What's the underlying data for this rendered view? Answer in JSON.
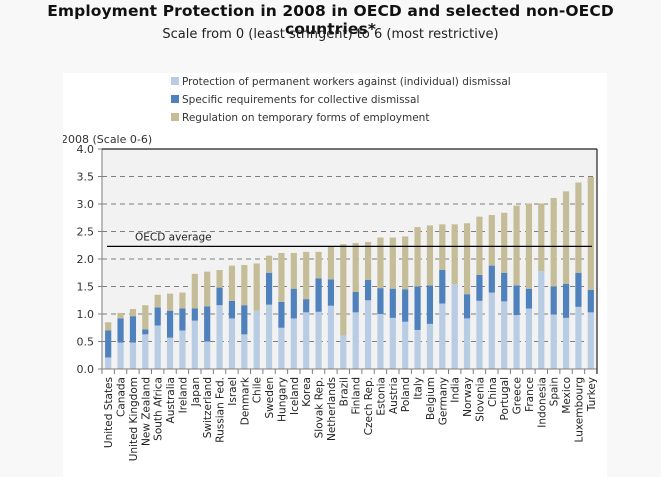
{
  "header": {
    "title": "Employment Protection in 2008 in OECD and selected non-OECD countries*",
    "subtitle": "Scale from 0 (least stringent) to 6 (most restrictive)"
  },
  "chart_data": {
    "type": "bar",
    "stacked": true,
    "title": "Employment Protection in 2008 in OECD and selected non-OECD countries*",
    "subtitle": "Scale from 0 (least stringent) to 6 (most restrictive)",
    "ylabel": "2008 (Scale 0-6)",
    "xlabel": "",
    "ylim": [
      0,
      4.0
    ],
    "yticks": [
      "0.0",
      "0.5",
      "1.0",
      "1.5",
      "2.0",
      "2.5",
      "3.0",
      "3.5",
      "4.0"
    ],
    "grid": "horizontal-dashed",
    "legend_position": "top",
    "colors": {
      "permanent": "#b8cce4",
      "collective": "#4f81bd",
      "temporary": "#c4bd97",
      "plot_bg": "#f2f2f2",
      "average_line": "#000000"
    },
    "categories": [
      "United States",
      "Canada",
      "United Kingdom",
      "New Zealand",
      "South Africa",
      "Australia",
      "Ireland",
      "Japan",
      "Switzerland",
      "Russian Fed.",
      "Israel",
      "Denmark",
      "Chile",
      "Sweden",
      "Hungary",
      "Iceland",
      "Korea",
      "Slovak Rep.",
      "Netherlands",
      "Brazil",
      "Finland",
      "Czech Rep.",
      "Estonia",
      "Austria",
      "Poland",
      "Italy",
      "Belgium",
      "Germany",
      "India",
      "Norway",
      "Slovenia",
      "China",
      "Portugal",
      "Greece",
      "France",
      "Indonesia",
      "Spain",
      "Mexico",
      "Luxembourg",
      "Turkey"
    ],
    "series": [
      {
        "name": "Protection of permanent workers against (individual) dismissal",
        "key": "permanent",
        "values": [
          0.21,
          0.48,
          0.48,
          0.63,
          0.79,
          0.57,
          0.7,
          0.88,
          0.5,
          1.16,
          0.92,
          0.63,
          1.06,
          1.17,
          0.75,
          0.92,
          1.03,
          1.04,
          1.15,
          0.61,
          1.03,
          1.25,
          1.0,
          0.93,
          0.86,
          0.71,
          0.82,
          1.19,
          1.54,
          0.92,
          1.24,
          1.39,
          1.23,
          0.98,
          1.1,
          1.78,
          0.99,
          0.93,
          1.13,
          1.03
        ]
      },
      {
        "name": "Specific requirements for collective dismissal",
        "key": "collective",
        "values": [
          0.49,
          0.44,
          0.48,
          0.09,
          0.33,
          0.49,
          0.4,
          0.22,
          0.64,
          0.32,
          0.32,
          0.53,
          0.0,
          0.58,
          0.47,
          0.54,
          0.24,
          0.61,
          0.48,
          0.0,
          0.37,
          0.37,
          0.47,
          0.53,
          0.59,
          0.79,
          0.7,
          0.61,
          0.0,
          0.44,
          0.47,
          0.49,
          0.52,
          0.54,
          0.36,
          0.0,
          0.51,
          0.62,
          0.62,
          0.41
        ]
      },
      {
        "name": "Regulation on temporary forms of employment",
        "key": "temporary",
        "values": [
          0.15,
          0.1,
          0.13,
          0.44,
          0.23,
          0.31,
          0.29,
          0.63,
          0.63,
          0.32,
          0.64,
          0.73,
          0.86,
          0.31,
          0.89,
          0.65,
          0.86,
          0.48,
          0.6,
          1.66,
          0.89,
          0.69,
          0.92,
          0.93,
          0.96,
          1.08,
          1.09,
          0.83,
          1.09,
          1.29,
          1.06,
          0.92,
          1.09,
          1.45,
          1.55,
          1.23,
          1.61,
          1.68,
          1.64,
          2.05
        ]
      }
    ],
    "annotations": [
      {
        "label": "OECD average",
        "type": "hline",
        "y": 2.23
      }
    ]
  }
}
